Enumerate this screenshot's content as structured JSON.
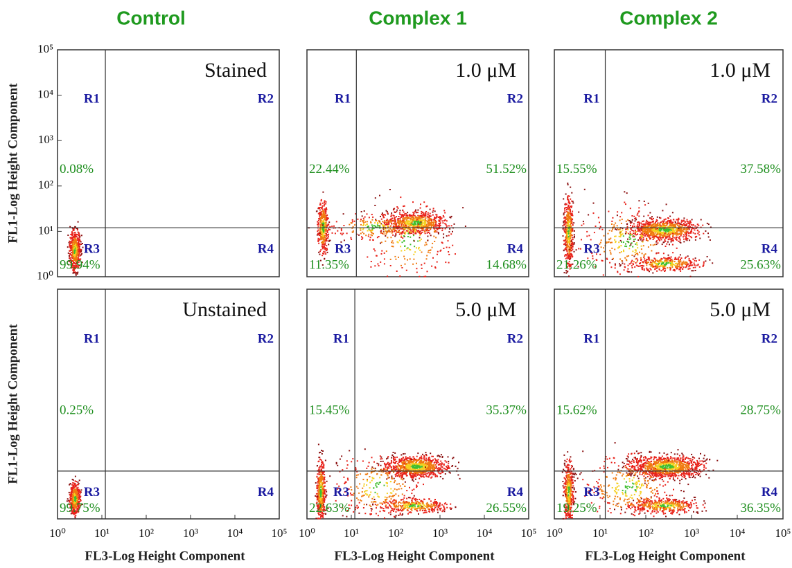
{
  "chart_data": [
    {
      "type": "scatter",
      "title": "Control",
      "label": "Stained",
      "y_label": "FL1-Log Height Component",
      "log_scale": true,
      "xlim": [
        1,
        100000
      ],
      "ylim": [
        1,
        100000
      ],
      "gate_x": 12,
      "gate_y": 12,
      "yticks": [
        {
          "value": 1,
          "label": "10⁰"
        },
        {
          "value": 10,
          "label": "10¹"
        },
        {
          "value": 100,
          "label": "10²"
        },
        {
          "value": 1000,
          "label": "10³"
        },
        {
          "value": 10000,
          "label": "10⁴"
        },
        {
          "value": 100000,
          "label": "10⁵"
        }
      ],
      "quadrants": [
        "R1",
        "R2",
        "R3",
        "R4"
      ],
      "values": [
        0.08,
        0,
        99.94,
        0
      ],
      "value_labels": [
        "0.08%",
        null,
        "99.94%",
        null
      ]
    },
    {
      "type": "scatter",
      "title": "Complex 1",
      "label": "1.0 μM",
      "log_scale": true,
      "xlim": [
        1,
        100000
      ],
      "ylim": [
        1,
        100000
      ],
      "gate_x": 13,
      "gate_y": 12,
      "quadrants": [
        "R1",
        "R2",
        "R3",
        "R4"
      ],
      "values": [
        22.44,
        51.52,
        11.35,
        14.68
      ],
      "value_labels": [
        "22.44%",
        "51.52%",
        "11.35%",
        "14.68%"
      ]
    },
    {
      "type": "scatter",
      "title": "Complex 2",
      "label": "1.0 μM",
      "log_scale": true,
      "xlim": [
        1,
        100000
      ],
      "ylim": [
        1,
        100000
      ],
      "gate_x": 13,
      "gate_y": 12,
      "quadrants": [
        "R1",
        "R2",
        "R3",
        "R4"
      ],
      "values": [
        15.55,
        37.58,
        21.26,
        25.63
      ],
      "value_labels": [
        "15.55%",
        "37.58%",
        "21.26%",
        "25.63%"
      ]
    },
    {
      "type": "scatter",
      "label": "Unstained",
      "y_label": "FL1-Log Height Component",
      "x_label": "FL3-Log Height Component",
      "log_scale": true,
      "xlim": [
        1,
        100000
      ],
      "ylim": [
        1,
        100000
      ],
      "gate_x": 12,
      "gate_y": 11,
      "xticks": [
        {
          "value": 1,
          "label": "10⁰"
        },
        {
          "value": 10,
          "label": "10¹"
        },
        {
          "value": 100,
          "label": "10²"
        },
        {
          "value": 1000,
          "label": "10³"
        },
        {
          "value": 10000,
          "label": "10⁴"
        },
        {
          "value": 100000,
          "label": "10⁵"
        }
      ],
      "quadrants": [
        "R1",
        "R2",
        "R3",
        "R4"
      ],
      "values": [
        0.25,
        0,
        99.75,
        0
      ],
      "value_labels": [
        "0.25%",
        null,
        "99.75%",
        null
      ]
    },
    {
      "type": "scatter",
      "label": "5.0 μM",
      "x_label": "FL3-Log Height Component",
      "log_scale": true,
      "xlim": [
        1,
        100000
      ],
      "ylim": [
        1,
        100000
      ],
      "gate_x": 12,
      "gate_y": 11,
      "xticks": [
        {
          "value": 1,
          "label": "10⁰"
        },
        {
          "value": 10,
          "label": "10¹"
        },
        {
          "value": 100,
          "label": "10²"
        },
        {
          "value": 1000,
          "label": "10³"
        },
        {
          "value": 10000,
          "label": "10⁴"
        },
        {
          "value": 100000,
          "label": "10⁵"
        }
      ],
      "quadrants": [
        "R1",
        "R2",
        "R3",
        "R4"
      ],
      "values": [
        15.45,
        35.37,
        22.63,
        26.55
      ],
      "value_labels": [
        "15.45%",
        "35.37%",
        "22.63%",
        "26.55%"
      ]
    },
    {
      "type": "scatter",
      "label": "5.0 μM",
      "x_label": "FL3-Log Height Component",
      "log_scale": true,
      "xlim": [
        1,
        100000
      ],
      "ylim": [
        1,
        100000
      ],
      "gate_x": 13,
      "gate_y": 11,
      "xticks": [
        {
          "value": 1,
          "label": "10⁰"
        },
        {
          "value": 10,
          "label": "10¹"
        },
        {
          "value": 100,
          "label": "10²"
        },
        {
          "value": 1000,
          "label": "10³"
        },
        {
          "value": 10000,
          "label": "10⁴"
        },
        {
          "value": 100000,
          "label": "10⁵"
        }
      ],
      "quadrants": [
        "R1",
        "R2",
        "R3",
        "R4"
      ],
      "values": [
        15.62,
        28.75,
        19.25,
        36.35
      ],
      "value_labels": [
        "15.62%",
        "28.75%",
        "19.25%",
        "36.35%"
      ]
    }
  ]
}
